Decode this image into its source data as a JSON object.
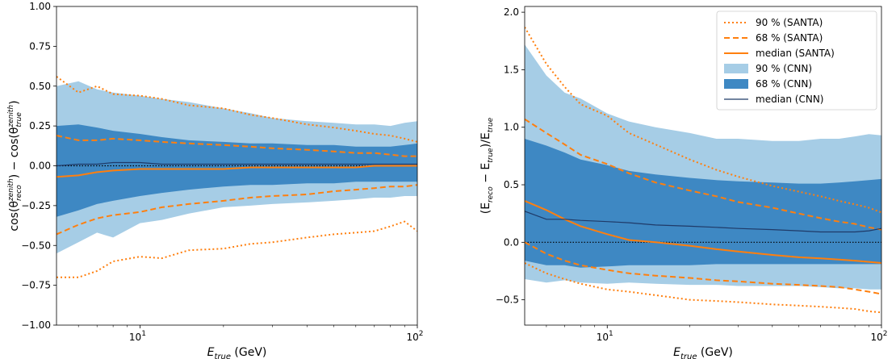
{
  "chart_data": [
    {
      "type": "area",
      "xscale": "log",
      "xlim": [
        5,
        100
      ],
      "ylim": [
        -1.0,
        1.0
      ],
      "xlabel": {
        "main": "E",
        "sub": "true",
        "unit": " (GeV)"
      },
      "ylabel": {
        "t1": "cos(θ",
        "s1": "zenith",
        "b1": "reco",
        "t2": ") − cos(θ",
        "s2": "zenith",
        "b2": "true",
        "t3": ")"
      },
      "xticks": [
        {
          "v": 10,
          "b": "10",
          "e": "1"
        },
        {
          "v": 100,
          "b": "10",
          "e": "2"
        }
      ],
      "yticks": [
        "1.00",
        "0.75",
        "0.50",
        "0.25",
        "0.00",
        "−0.25",
        "−0.50",
        "−0.75",
        "−1.00"
      ],
      "yticks_val": [
        1.0,
        0.75,
        0.5,
        0.25,
        0.0,
        -0.25,
        -0.5,
        -0.75,
        -1.0
      ],
      "zero_line": 0,
      "x": [
        5,
        6,
        7,
        8,
        10,
        12,
        15,
        20,
        25,
        30,
        40,
        50,
        60,
        70,
        80,
        90,
        100
      ],
      "series": [
        {
          "name": "90 % (CNN)",
          "kind": "band",
          "color": "#a6cde6",
          "lower": [
            -0.55,
            -0.48,
            -0.42,
            -0.45,
            -0.36,
            -0.34,
            -0.3,
            -0.26,
            -0.25,
            -0.24,
            -0.23,
            -0.22,
            -0.21,
            -0.2,
            -0.2,
            -0.19,
            -0.19
          ],
          "upper": [
            0.5,
            0.53,
            0.48,
            0.46,
            0.44,
            0.42,
            0.4,
            0.36,
            0.33,
            0.3,
            0.28,
            0.27,
            0.26,
            0.26,
            0.25,
            0.27,
            0.28
          ]
        },
        {
          "name": "68 % (CNN)",
          "kind": "band",
          "color": "#3e88c3",
          "lower": [
            -0.32,
            -0.28,
            -0.24,
            -0.22,
            -0.19,
            -0.17,
            -0.15,
            -0.13,
            -0.12,
            -0.12,
            -0.11,
            -0.11,
            -0.1,
            -0.1,
            -0.1,
            -0.1,
            -0.1
          ],
          "upper": [
            0.25,
            0.26,
            0.24,
            0.22,
            0.2,
            0.18,
            0.16,
            0.15,
            0.14,
            0.14,
            0.13,
            0.13,
            0.12,
            0.12,
            0.12,
            0.13,
            0.14
          ]
        },
        {
          "name": "90 % (SANTA)",
          "kind": "line",
          "style": "dotted",
          "color": "#ff7f0e",
          "y": [
            0.56,
            0.46,
            0.5,
            0.45,
            0.44,
            0.42,
            0.38,
            0.36,
            0.32,
            0.3,
            0.26,
            0.24,
            0.22,
            0.2,
            0.19,
            0.17,
            0.15
          ]
        },
        {
          "name": "90 % (SANTA)",
          "kind": "line",
          "style": "dotted",
          "color": "#ff7f0e",
          "y": [
            -0.7,
            -0.7,
            -0.66,
            -0.6,
            -0.57,
            -0.58,
            -0.53,
            -0.52,
            -0.49,
            -0.48,
            -0.45,
            -0.43,
            -0.42,
            -0.41,
            -0.38,
            -0.35,
            -0.41
          ]
        },
        {
          "name": "68 % (SANTA)",
          "kind": "line",
          "style": "dashed",
          "color": "#ff7f0e",
          "y": [
            0.19,
            0.16,
            0.16,
            0.17,
            0.16,
            0.15,
            0.14,
            0.13,
            0.12,
            0.11,
            0.1,
            0.09,
            0.08,
            0.08,
            0.07,
            0.06,
            0.06
          ]
        },
        {
          "name": "68 % (SANTA)",
          "kind": "line",
          "style": "dashed",
          "color": "#ff7f0e",
          "y": [
            -0.43,
            -0.37,
            -0.33,
            -0.31,
            -0.29,
            -0.26,
            -0.24,
            -0.22,
            -0.2,
            -0.19,
            -0.18,
            -0.16,
            -0.15,
            -0.14,
            -0.13,
            -0.13,
            -0.12
          ]
        },
        {
          "name": "median (SANTA)",
          "kind": "line",
          "style": "solid",
          "color": "#ff7f0e",
          "y": [
            -0.07,
            -0.06,
            -0.04,
            -0.03,
            -0.02,
            -0.02,
            -0.02,
            -0.02,
            -0.01,
            -0.01,
            -0.01,
            -0.01,
            -0.01,
            0.0,
            0.0,
            0.0,
            0.0
          ]
        },
        {
          "name": "median (CNN)",
          "kind": "line",
          "style": "solid",
          "color": "#1f3a68",
          "y": [
            0.0,
            0.01,
            0.01,
            0.02,
            0.02,
            0.01,
            0.01,
            0.01,
            0.01,
            0.01,
            0.01,
            0.01,
            0.01,
            0.01,
            0.01,
            0.01,
            0.01
          ]
        }
      ]
    },
    {
      "type": "area",
      "xscale": "log",
      "xlim": [
        5,
        100
      ],
      "ylim": [
        -0.72,
        2.05
      ],
      "xlabel": {
        "main": "E",
        "sub": "true",
        "unit": " (GeV)"
      },
      "ylabel": {
        "t1": "(E",
        "s1": "",
        "b1": "reco",
        "t2": " − E",
        "s2": "",
        "b2": "true",
        "t3": ")/E",
        "b3": "true"
      },
      "xticks": [
        {
          "v": 10,
          "b": "10",
          "e": "1"
        },
        {
          "v": 100,
          "b": "10",
          "e": "2"
        }
      ],
      "yticks": [
        "2.0",
        "1.5",
        "1.0",
        "0.5",
        "0.0",
        "−0.5"
      ],
      "yticks_val": [
        2.0,
        1.5,
        1.0,
        0.5,
        0.0,
        -0.5
      ],
      "zero_line": 0,
      "x": [
        5,
        6,
        7,
        8,
        10,
        12,
        15,
        20,
        25,
        30,
        40,
        50,
        60,
        70,
        80,
        90,
        100
      ],
      "series": [
        {
          "name": "90 % (CNN)",
          "kind": "band",
          "color": "#a6cde6",
          "lower": [
            -0.32,
            -0.35,
            -0.33,
            -0.35,
            -0.36,
            -0.35,
            -0.36,
            -0.37,
            -0.37,
            -0.38,
            -0.38,
            -0.38,
            -0.39,
            -0.4,
            -0.4,
            -0.41,
            -0.41
          ],
          "upper": [
            1.72,
            1.45,
            1.3,
            1.25,
            1.12,
            1.05,
            1.0,
            0.95,
            0.9,
            0.9,
            0.88,
            0.88,
            0.9,
            0.9,
            0.92,
            0.94,
            0.93
          ]
        },
        {
          "name": "68 % (CNN)",
          "kind": "band",
          "color": "#3e88c3",
          "lower": [
            -0.16,
            -0.2,
            -0.2,
            -0.22,
            -0.21,
            -0.2,
            -0.2,
            -0.2,
            -0.19,
            -0.19,
            -0.19,
            -0.19,
            -0.19,
            -0.19,
            -0.19,
            -0.19,
            -0.19
          ],
          "upper": [
            0.9,
            0.84,
            0.78,
            0.72,
            0.67,
            0.62,
            0.59,
            0.56,
            0.54,
            0.53,
            0.52,
            0.51,
            0.51,
            0.52,
            0.53,
            0.54,
            0.55
          ]
        },
        {
          "name": "90 % (SANTA)",
          "kind": "line",
          "style": "dotted",
          "color": "#ff7f0e",
          "y": [
            1.87,
            1.55,
            1.35,
            1.2,
            1.1,
            0.95,
            0.85,
            0.72,
            0.63,
            0.57,
            0.49,
            0.44,
            0.4,
            0.36,
            0.33,
            0.3,
            0.26
          ]
        },
        {
          "name": "90 % (SANTA)",
          "kind": "line",
          "style": "dotted",
          "color": "#ff7f0e",
          "y": [
            -0.18,
            -0.27,
            -0.32,
            -0.36,
            -0.41,
            -0.43,
            -0.46,
            -0.5,
            -0.51,
            -0.52,
            -0.54,
            -0.55,
            -0.56,
            -0.57,
            -0.58,
            -0.6,
            -0.61
          ]
        },
        {
          "name": "68 % (SANTA)",
          "kind": "line",
          "style": "dashed",
          "color": "#ff7f0e",
          "y": [
            1.07,
            0.95,
            0.85,
            0.76,
            0.68,
            0.6,
            0.52,
            0.45,
            0.4,
            0.35,
            0.3,
            0.25,
            0.21,
            0.18,
            0.16,
            0.13,
            0.11
          ]
        },
        {
          "name": "68 % (SANTA)",
          "kind": "line",
          "style": "dashed",
          "color": "#ff7f0e",
          "y": [
            0.0,
            -0.1,
            -0.16,
            -0.2,
            -0.24,
            -0.27,
            -0.29,
            -0.31,
            -0.33,
            -0.34,
            -0.36,
            -0.37,
            -0.38,
            -0.39,
            -0.41,
            -0.43,
            -0.45
          ]
        },
        {
          "name": "median (SANTA)",
          "kind": "line",
          "style": "solid",
          "color": "#ff7f0e",
          "y": [
            0.36,
            0.28,
            0.2,
            0.14,
            0.07,
            0.02,
            0.0,
            -0.03,
            -0.06,
            -0.08,
            -0.11,
            -0.13,
            -0.14,
            -0.15,
            -0.16,
            -0.17,
            -0.18
          ]
        },
        {
          "name": "median (CNN)",
          "kind": "line",
          "style": "solid",
          "color": "#1f3a68",
          "y": [
            0.27,
            0.2,
            0.2,
            0.19,
            0.18,
            0.17,
            0.15,
            0.14,
            0.13,
            0.12,
            0.11,
            0.1,
            0.09,
            0.09,
            0.09,
            0.1,
            0.12
          ]
        }
      ]
    }
  ],
  "legend": {
    "placement": "top-right",
    "items": [
      {
        "label": "90 % (SANTA)",
        "kind": "line",
        "style": "dotted",
        "color": "#ff7f0e"
      },
      {
        "label": "68 % (SANTA)",
        "kind": "line",
        "style": "dashed",
        "color": "#ff7f0e"
      },
      {
        "label": "median (SANTA)",
        "kind": "line",
        "style": "solid",
        "color": "#ff7f0e"
      },
      {
        "label": "90 % (CNN)",
        "kind": "patch",
        "color": "#a6cde6"
      },
      {
        "label": "68 % (CNN)",
        "kind": "patch",
        "color": "#3e88c3"
      },
      {
        "label": "median (CNN)",
        "kind": "line",
        "style": "solid",
        "color": "#1f3a68"
      }
    ]
  }
}
